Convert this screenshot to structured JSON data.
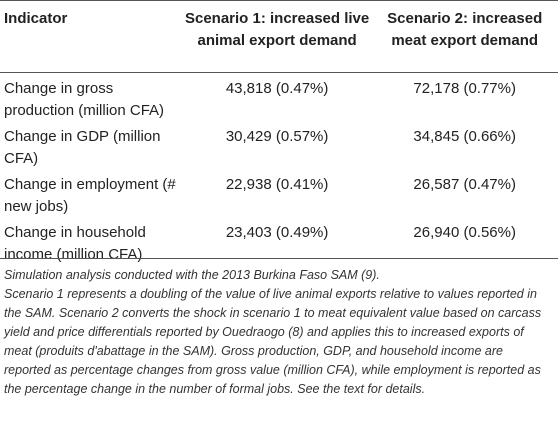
{
  "table": {
    "headers": [
      "Indicator",
      "Scenario 1: increased live animal export demand",
      "Scenario 2: increased meat export demand"
    ],
    "rows": [
      {
        "indicator": "Change in gross production (million CFA)",
        "s1": "43,818 (0.47%)",
        "s2": "72,178 (0.77%)"
      },
      {
        "indicator": "Change in GDP (million CFA)",
        "s1": "30,429 (0.57%)",
        "s2": "34,845 (0.66%)"
      },
      {
        "indicator": "Change in employment (# new jobs)",
        "s1": "22,938 (0.41%)",
        "s2": "26,587 (0.47%)"
      },
      {
        "indicator": "Change in household income (million CFA)",
        "s1": "23,403 (0.49%)",
        "s2": "26,940 (0.56%)"
      }
    ]
  },
  "notes": {
    "line1": "Simulation analysis conducted with the 2013 Burkina Faso SAM (9).",
    "line2": "Scenario 1 represents a doubling of the value of live animal exports relative to values reported in the SAM. Scenario 2 converts the shock in scenario 1 to meat equivalent value based on carcass yield and price differentials reported by Ouedraogo (8) and applies this to increased exports of meat (produits d'abattage in the SAM). Gross production, GDP, and household income are reported as percentage changes from gross value (million CFA), while employment is reported as the percentage change in the number of formal jobs. See the text for details."
  }
}
